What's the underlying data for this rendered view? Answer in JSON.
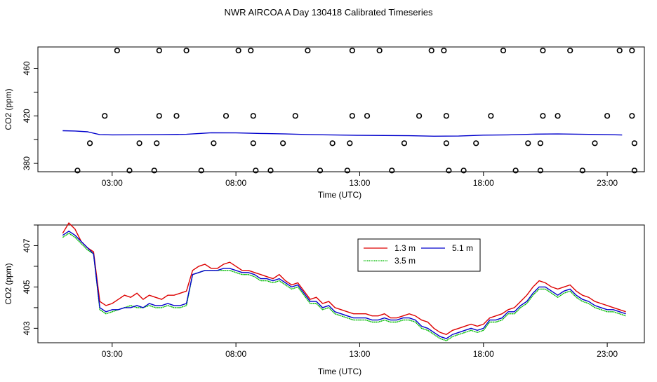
{
  "title": "NWR AIRCOA A  Day 130418  Calibrated Timeseries",
  "chart_data": [
    {
      "type": "line",
      "panel": "top",
      "xlabel": "Time (UTC)",
      "ylabel": "CO2 (ppm)",
      "xlim": [
        0,
        24.5
      ],
      "ylim": [
        373,
        478
      ],
      "x_ticks": [
        3,
        8,
        13,
        18,
        23
      ],
      "x_tick_labels": [
        "03:00",
        "08:00",
        "13:00",
        "18:00",
        "23:00"
      ],
      "y_ticks": [
        380,
        420,
        460
      ],
      "y_tick_labels": [
        "380",
        "420",
        "460"
      ],
      "series": [
        {
          "name": "blue line",
          "color": "#0000cc",
          "x": [
            1,
            1.5,
            2,
            2.5,
            3,
            4,
            5,
            6,
            7,
            8,
            9,
            10,
            11,
            12,
            13,
            14,
            15,
            16,
            17,
            18,
            19,
            20,
            21,
            22,
            23,
            23.6
          ],
          "y": [
            407.5,
            407.3,
            406.6,
            404.2,
            404.0,
            404.1,
            404.2,
            404.5,
            405.8,
            405.7,
            405.2,
            404.8,
            404.2,
            403.9,
            403.6,
            403.5,
            403.3,
            402.9,
            403.0,
            403.8,
            404.0,
            404.6,
            404.8,
            404.5,
            404.2,
            403.9
          ]
        },
        {
          "name": "calibration points",
          "style": "open-circle",
          "points": [
            [
              1.6,
              374
            ],
            [
              2.1,
              397
            ],
            [
              2.7,
              420
            ],
            [
              3.2,
              475
            ],
            [
              3.7,
              374
            ],
            [
              4.1,
              397
            ],
            [
              4.7,
              374
            ],
            [
              4.8,
              397
            ],
            [
              4.9,
              420
            ],
            [
              4.9,
              475
            ],
            [
              5.6,
              420
            ],
            [
              6.0,
              475
            ],
            [
              6.6,
              374
            ],
            [
              7.1,
              397
            ],
            [
              7.6,
              420
            ],
            [
              8.1,
              475
            ],
            [
              8.6,
              475
            ],
            [
              8.7,
              420
            ],
            [
              8.7,
              397
            ],
            [
              8.8,
              374
            ],
            [
              9.4,
              374
            ],
            [
              9.9,
              397
            ],
            [
              10.4,
              420
            ],
            [
              10.9,
              475
            ],
            [
              11.4,
              374
            ],
            [
              11.9,
              397
            ],
            [
              12.5,
              374
            ],
            [
              12.6,
              397
            ],
            [
              12.7,
              420
            ],
            [
              12.7,
              475
            ],
            [
              13.3,
              420
            ],
            [
              13.8,
              475
            ],
            [
              14.3,
              374
            ],
            [
              14.8,
              397
            ],
            [
              15.4,
              420
            ],
            [
              15.9,
              475
            ],
            [
              16.4,
              475
            ],
            [
              16.5,
              420
            ],
            [
              16.5,
              397
            ],
            [
              16.6,
              374
            ],
            [
              17.2,
              374
            ],
            [
              17.7,
              397
            ],
            [
              18.3,
              420
            ],
            [
              18.8,
              475
            ],
            [
              19.3,
              374
            ],
            [
              19.8,
              397
            ],
            [
              20.3,
              397
            ],
            [
              20.3,
              374
            ],
            [
              20.4,
              420
            ],
            [
              20.4,
              475
            ],
            [
              21.0,
              420
            ],
            [
              21.5,
              475
            ],
            [
              22.0,
              374
            ],
            [
              22.5,
              397
            ],
            [
              23.0,
              420
            ],
            [
              23.5,
              475
            ],
            [
              24.0,
              475
            ],
            [
              24.0,
              420
            ],
            [
              24.1,
              397
            ],
            [
              24.1,
              374
            ]
          ]
        }
      ]
    },
    {
      "type": "line",
      "panel": "bottom",
      "xlabel": "Time (UTC)",
      "ylabel": "CO2 (ppm)",
      "xlim": [
        0,
        24.5
      ],
      "ylim": [
        402.3,
        408.0
      ],
      "x_ticks": [
        3,
        8,
        13,
        18,
        23
      ],
      "x_tick_labels": [
        "03:00",
        "08:00",
        "13:00",
        "18:00",
        "23:00"
      ],
      "y_ticks": [
        403,
        405,
        407
      ],
      "y_tick_labels": [
        "403",
        "405",
        "407"
      ],
      "legend": "top-center",
      "x": [
        1.0,
        1.25,
        1.5,
        1.75,
        2.0,
        2.25,
        2.5,
        2.75,
        3.0,
        3.25,
        3.5,
        3.75,
        4.0,
        4.25,
        4.5,
        4.75,
        5.0,
        5.25,
        5.5,
        5.75,
        6.0,
        6.25,
        6.5,
        6.75,
        7.0,
        7.25,
        7.5,
        7.75,
        8.0,
        8.25,
        8.5,
        8.75,
        9.0,
        9.25,
        9.5,
        9.75,
        10.0,
        10.25,
        10.5,
        10.75,
        11.0,
        11.25,
        11.5,
        11.75,
        12.0,
        12.25,
        12.5,
        12.75,
        13.0,
        13.25,
        13.5,
        13.75,
        14.0,
        14.25,
        14.5,
        14.75,
        15.0,
        15.25,
        15.5,
        15.75,
        16.0,
        16.25,
        16.5,
        16.75,
        17.0,
        17.25,
        17.5,
        17.75,
        18.0,
        18.25,
        18.5,
        18.75,
        19.0,
        19.25,
        19.5,
        19.75,
        20.0,
        20.25,
        20.5,
        20.75,
        21.0,
        21.25,
        21.5,
        21.75,
        22.0,
        22.25,
        22.5,
        22.75,
        23.0,
        23.25,
        23.5,
        23.75
      ],
      "series": [
        {
          "name": "1.3 m",
          "color": "#dd0000",
          "values": [
            407.6,
            408.1,
            407.8,
            407.2,
            406.9,
            406.7,
            404.3,
            404.1,
            404.2,
            404.4,
            404.6,
            404.5,
            404.7,
            404.4,
            404.6,
            404.5,
            404.4,
            404.6,
            404.6,
            404.7,
            404.8,
            405.8,
            406.0,
            406.1,
            405.9,
            405.9,
            406.1,
            406.2,
            406.0,
            405.8,
            405.8,
            405.7,
            405.6,
            405.5,
            405.4,
            405.6,
            405.3,
            405.1,
            405.2,
            404.8,
            404.4,
            404.5,
            404.2,
            404.3,
            404.0,
            403.9,
            403.8,
            403.7,
            403.7,
            403.7,
            403.6,
            403.6,
            403.7,
            403.5,
            403.5,
            403.6,
            403.7,
            403.6,
            403.4,
            403.3,
            403.0,
            402.8,
            402.7,
            402.9,
            403.0,
            403.1,
            403.2,
            403.1,
            403.2,
            403.5,
            403.6,
            403.7,
            403.9,
            404.0,
            404.3,
            404.6,
            405.0,
            405.3,
            405.2,
            405.0,
            404.9,
            405.0,
            405.1,
            404.8,
            404.6,
            404.5,
            404.3,
            404.2,
            404.1,
            404.0,
            403.9,
            403.8
          ]
        },
        {
          "name": "3.5 m",
          "color": "#00bb00",
          "values": [
            407.4,
            407.6,
            407.4,
            407.1,
            406.8,
            406.6,
            403.9,
            403.7,
            403.8,
            403.9,
            404.0,
            404.1,
            404.0,
            404.0,
            404.1,
            404.0,
            404.0,
            404.1,
            404.0,
            404.0,
            404.1,
            405.6,
            405.7,
            405.8,
            405.8,
            405.8,
            405.8,
            405.8,
            405.7,
            405.6,
            405.6,
            405.5,
            405.3,
            405.3,
            405.2,
            405.3,
            405.1,
            404.9,
            405.0,
            404.6,
            404.2,
            404.2,
            403.9,
            404.0,
            403.7,
            403.6,
            403.5,
            403.4,
            403.4,
            403.4,
            403.3,
            403.3,
            403.4,
            403.3,
            403.3,
            403.4,
            403.4,
            403.3,
            403.0,
            402.9,
            402.7,
            402.5,
            402.4,
            402.6,
            402.7,
            402.8,
            402.9,
            402.8,
            402.9,
            403.3,
            403.3,
            403.4,
            403.7,
            403.7,
            404.0,
            404.2,
            404.6,
            404.9,
            404.9,
            404.7,
            404.5,
            404.7,
            404.8,
            404.5,
            404.3,
            404.2,
            404.0,
            403.9,
            403.8,
            403.8,
            403.7,
            403.6
          ]
        },
        {
          "name": "5.1 m",
          "color": "#0000cc",
          "values": [
            407.5,
            407.7,
            407.5,
            407.2,
            406.9,
            406.6,
            404.0,
            403.8,
            403.9,
            403.9,
            404.0,
            404.0,
            404.1,
            404.0,
            404.2,
            404.1,
            404.1,
            404.2,
            404.1,
            404.1,
            404.2,
            405.6,
            405.7,
            405.8,
            405.8,
            405.8,
            405.9,
            405.9,
            405.8,
            405.7,
            405.7,
            405.6,
            405.4,
            405.4,
            405.3,
            405.4,
            405.2,
            405.0,
            405.1,
            404.7,
            404.3,
            404.3,
            404.0,
            404.1,
            403.8,
            403.7,
            403.6,
            403.5,
            403.5,
            403.5,
            403.4,
            403.4,
            403.5,
            403.4,
            403.4,
            403.5,
            403.5,
            403.4,
            403.1,
            403.0,
            402.8,
            402.6,
            402.5,
            402.7,
            402.8,
            402.9,
            403.0,
            402.9,
            403.0,
            403.4,
            403.4,
            403.5,
            403.8,
            403.8,
            404.1,
            404.3,
            404.7,
            405.0,
            405.0,
            404.8,
            404.6,
            404.8,
            404.9,
            404.6,
            404.4,
            404.3,
            404.1,
            404.0,
            403.9,
            403.9,
            403.8,
            403.7
          ]
        }
      ]
    }
  ]
}
